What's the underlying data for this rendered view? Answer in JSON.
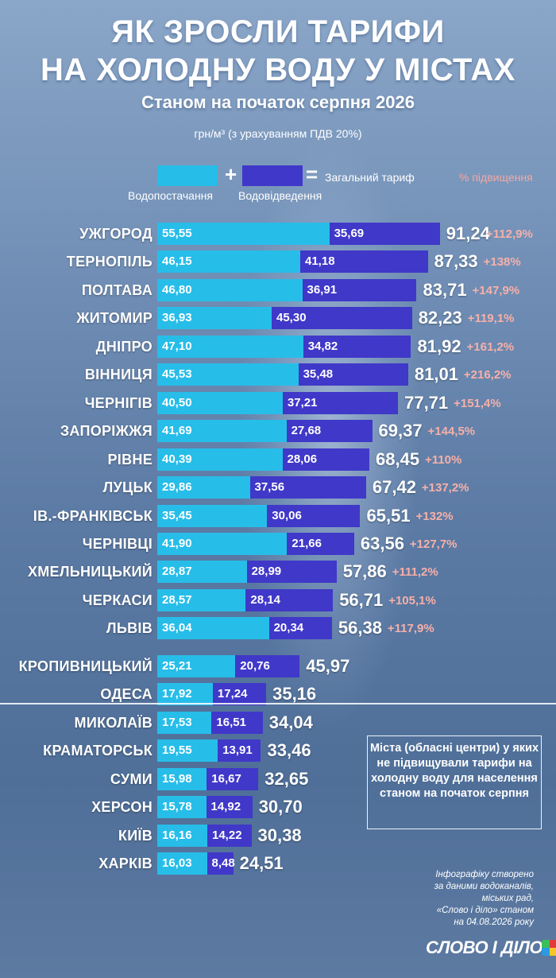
{
  "title_line1": "ЯК ЗРОСЛИ ТАРИФИ",
  "title_line2": "НА ХОЛОДНУ ВОДУ У МІСТАХ",
  "subtitle": "Станом на початок серпня 2026",
  "unit": "грн/м³ (з урахуванням ПДВ 20%)",
  "legend": {
    "supply": "Водопостачання",
    "plus": "+",
    "drainage": "Водовідведення",
    "equals": "=",
    "total": "Загальний тариф",
    "increase": "% підвищення"
  },
  "colors": {
    "supply": "#27bde9",
    "drainage": "#4038c8",
    "increase": "#f6b0a9"
  },
  "note": "Міста (обласні центри) у яких не підвищували тарифи на холодну воду для населення станом на початок серпня",
  "source_lines": [
    "Інфографіку створено",
    "за даними водоканалів,",
    "міських рад,",
    "«Слово і діло» станом",
    "на 04.08.2026 року"
  ],
  "logo": "СЛОВО І ДІЛО",
  "chart_data": {
    "type": "bar",
    "orientation": "horizontal",
    "stacked": true,
    "unit": "грн/м³",
    "series_names": [
      "Водопостачання",
      "Водовідведення"
    ],
    "rows": [
      {
        "city": "УЖГОРОД",
        "supply": "55,55",
        "drainage": "35,69",
        "total": "91,24",
        "increase": "+112,9%"
      },
      {
        "city": "ТЕРНОПІЛЬ",
        "supply": "46,15",
        "drainage": "41,18",
        "total": "87,33",
        "increase": "+138%"
      },
      {
        "city": "ПОЛТАВА",
        "supply": "46,80",
        "drainage": "36,91",
        "total": "83,71",
        "increase": "+147,9%"
      },
      {
        "city": "ЖИТОМИР",
        "supply": "36,93",
        "drainage": "45,30",
        "total": "82,23",
        "increase": "+119,1%"
      },
      {
        "city": "ДНІПРО",
        "supply": "47,10",
        "drainage": "34,82",
        "total": "81,92",
        "increase": "+161,2%"
      },
      {
        "city": "ВІННИЦЯ",
        "supply": "45,53",
        "drainage": "35,48",
        "total": "81,01",
        "increase": "+216,2%"
      },
      {
        "city": "ЧЕРНІГІВ",
        "supply": "40,50",
        "drainage": "37,21",
        "total": "77,71",
        "increase": "+151,4%"
      },
      {
        "city": "ЗАПОРІЖЖЯ",
        "supply": "41,69",
        "drainage": "27,68",
        "total": "69,37",
        "increase": "+144,5%"
      },
      {
        "city": "РІВНЕ",
        "supply": "40,39",
        "drainage": "28,06",
        "total": "68,45",
        "increase": "+110%"
      },
      {
        "city": "ЛУЦЬК",
        "supply": "29,86",
        "drainage": "37,56",
        "total": "67,42",
        "increase": "+137,2%"
      },
      {
        "city": "ІВ.-ФРАНКІВСЬК",
        "supply": "35,45",
        "drainage": "30,06",
        "total": "65,51",
        "increase": "+132%"
      },
      {
        "city": "ЧЕРНІВЦІ",
        "supply": "41,90",
        "drainage": "21,66",
        "total": "63,56",
        "increase": "+127,7%"
      },
      {
        "city": "ХМЕЛЬНИЦЬКИЙ",
        "supply": "28,87",
        "drainage": "28,99",
        "total": "57,86",
        "increase": "+111,2%"
      },
      {
        "city": "ЧЕРКАСИ",
        "supply": "28,57",
        "drainage": "28,14",
        "total": "56,71",
        "increase": "+105,1%"
      },
      {
        "city": "ЛЬВІВ",
        "supply": "36,04",
        "drainage": "20,34",
        "total": "56,38",
        "increase": "+117,9%"
      },
      {
        "city": "КРОПИВНИЦЬКИЙ",
        "supply": "25,21",
        "drainage": "20,76",
        "total": "45,97",
        "increase": ""
      },
      {
        "city": "ОДЕСА",
        "supply": "17,92",
        "drainage": "17,24",
        "total": "35,16",
        "increase": ""
      },
      {
        "city": "МИКОЛАЇВ",
        "supply": "17,53",
        "drainage": "16,51",
        "total": "34,04",
        "increase": ""
      },
      {
        "city": "КРАМАТОРСЬК",
        "supply": "19,55",
        "drainage": "13,91",
        "total": "33,46",
        "increase": ""
      },
      {
        "city": "СУМИ",
        "supply": "15,98",
        "drainage": "16,67",
        "total": "32,65",
        "increase": ""
      },
      {
        "city": "ХЕРСОН",
        "supply": "15,78",
        "drainage": "14,92",
        "total": "30,70",
        "increase": ""
      },
      {
        "city": "КИЇВ",
        "supply": "16,16",
        "drainage": "14,22",
        "total": "30,38",
        "increase": ""
      },
      {
        "city": "ХАРКІВ",
        "supply": "16,03",
        "drainage": "8,48",
        "total": "24,51",
        "increase": ""
      }
    ]
  }
}
